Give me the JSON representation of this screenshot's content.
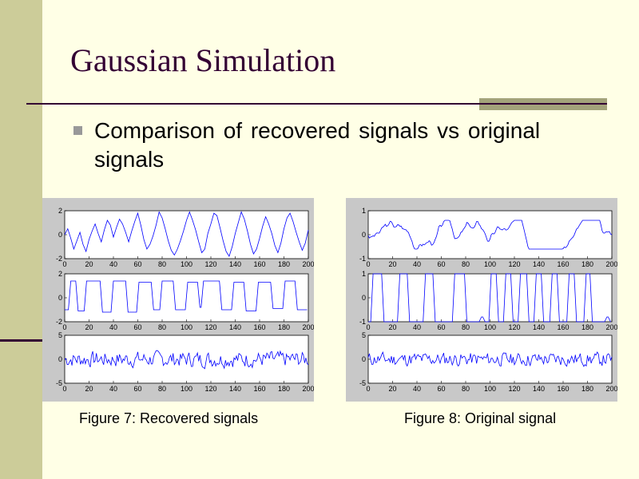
{
  "slide": {
    "title": "Gaussian Simulation",
    "bullet": "Comparison of recovered signals vs original signals",
    "caption_left": "Figure 7: Recovered signals",
    "caption_right": "Figure 8: Original signal"
  },
  "colors": {
    "background": "#ffffe6",
    "band": "#cccc99",
    "title": "#330033",
    "line": "#0000ff",
    "panel": "#c8c8c8"
  },
  "chart_data": [
    {
      "type": "line",
      "title": "Figure 7: Recovered signals",
      "panels": [
        {
          "xlim": [
            0,
            200
          ],
          "ylim": [
            -2,
            2
          ],
          "yticks": [
            "2",
            "0",
            "-2"
          ],
          "xticks": [
            "0",
            "20",
            "40",
            "60",
            "80",
            "100",
            "120",
            "140",
            "160",
            "180",
            "200"
          ],
          "series": [
            {
              "kind": "smooth",
              "amp": 1.2,
              "seed": 3,
              "values": [
                0,
                0.5,
                -0.3,
                -1.2,
                -0.5,
                0.2,
                -0.8,
                -1.4,
                -0.4,
                0.3,
                0.9,
                0.1,
                -0.6,
                0.4,
                1.2,
                0.8,
                -0.2,
                0.6,
                1.3,
                0.9,
                0.2,
                -0.6,
                0.3,
                1.1,
                1.8,
                0.8,
                -0.4,
                -1.2,
                -0.8,
                -0.1,
                0.8,
                1.9,
                1.4,
                0.5,
                -0.5,
                -1.3,
                -1.7,
                -1.2,
                -0.5,
                0.3,
                1.2,
                1.9,
                1.2,
                0.4,
                -0.6,
                -1.5,
                -1.2,
                0.1,
                0.9,
                1.8,
                1.6,
                0.6,
                -0.5,
                -1.4,
                -1.8,
                -1.0,
                0.1,
                1.0,
                1.9,
                1.3,
                0.3,
                -0.8,
                -1.6,
                -1.2,
                -0.3,
                0.7,
                1.5,
                0.9,
                0.1,
                -0.9,
                -1.5,
                -0.7,
                0.5,
                1.4,
                1.8,
                1.1,
                0.2,
                -0.6,
                -1.3,
                -0.7,
                0.4
              ]
            }
          ]
        },
        {
          "xlim": [
            0,
            200
          ],
          "ylim": [
            -2,
            2
          ],
          "yticks": [
            "2",
            "0",
            "-2"
          ],
          "xticks": [
            "0",
            "20",
            "40",
            "60",
            "80",
            "100",
            "120",
            "140",
            "160",
            "180",
            "200"
          ],
          "series": [
            {
              "kind": "square",
              "high": 1.4,
              "low": -1.1,
              "segments": [
                [
                  0,
                  4,
                  -1.0
                ],
                [
                  4,
                  10,
                  1.4
                ],
                [
                  10,
                  17,
                  -1.1
                ],
                [
                  17,
                  30,
                  1.4
                ],
                [
                  30,
                  39,
                  -1.2
                ],
                [
                  39,
                  51,
                  1.4
                ],
                [
                  51,
                  60,
                  -1.2
                ],
                [
                  60,
                  72,
                  1.3
                ],
                [
                  72,
                  79,
                  -1.0
                ],
                [
                  79,
                  90,
                  1.4
                ],
                [
                  90,
                  100,
                  -1.0
                ],
                [
                  100,
                  110,
                  1.3
                ],
                [
                  110,
                  113,
                  -0.8
                ],
                [
                  113,
                  128,
                  1.4
                ],
                [
                  128,
                  138,
                  -1.0
                ],
                [
                  138,
                  148,
                  1.3
                ],
                [
                  148,
                  158,
                  -1.1
                ],
                [
                  158,
                  170,
                  1.3
                ],
                [
                  170,
                  180,
                  -0.9
                ],
                [
                  180,
                  190,
                  1.4
                ],
                [
                  190,
                  200,
                  -1.0
                ]
              ]
            }
          ]
        },
        {
          "xlim": [
            0,
            200
          ],
          "ylim": [
            -5,
            5
          ],
          "yticks": [
            "5",
            "0",
            "-5"
          ],
          "xticks": [
            "0",
            "20",
            "40",
            "60",
            "80",
            "100",
            "120",
            "140",
            "160",
            "180",
            "200"
          ],
          "series": [
            {
              "kind": "noise",
              "amp": 1.5,
              "seed": 7
            }
          ]
        }
      ]
    },
    {
      "type": "line",
      "title": "Figure 8: Original signal",
      "panels": [
        {
          "xlim": [
            0,
            200
          ],
          "ylim": [
            -1,
            1
          ],
          "yticks": [
            "1",
            "0",
            "-1"
          ],
          "xticks": [
            "0",
            "20",
            "40",
            "60",
            "80",
            "100",
            "120",
            "140",
            "160",
            "180",
            "200"
          ],
          "series": [
            {
              "kind": "smooth",
              "amp": 0.6,
              "seed": 3
            }
          ]
        },
        {
          "xlim": [
            0,
            200
          ],
          "ylim": [
            -1,
            1
          ],
          "yticks": [
            "1",
            "0",
            "-1"
          ],
          "xticks": [
            "0",
            "20",
            "40",
            "60",
            "80",
            "100",
            "120",
            "140",
            "160",
            "180",
            "200"
          ],
          "series": [
            {
              "kind": "square",
              "high": 1,
              "low": -1,
              "segments": [
                [
                  0,
                  3,
                  -1
                ],
                [
                  3,
                  12,
                  1
                ],
                [
                  12,
                  25,
                  -1
                ],
                [
                  25,
                  33,
                  1
                ],
                [
                  33,
                  46,
                  -1
                ],
                [
                  46,
                  54,
                  1
                ],
                [
                  54,
                  70,
                  -1
                ],
                [
                  70,
                  80,
                  1
                ],
                [
                  80,
                  92,
                  -1
                ],
                [
                  92,
                  95,
                  -0.8
                ],
                [
                  95,
                  100,
                  -1
                ],
                [
                  100,
                  106,
                  1
                ],
                [
                  106,
                  112,
                  -1
                ],
                [
                  112,
                  118,
                  1
                ],
                [
                  118,
                  124,
                  -1
                ],
                [
                  124,
                  131,
                  1
                ],
                [
                  131,
                  137,
                  -1
                ],
                [
                  137,
                  143,
                  1
                ],
                [
                  143,
                  150,
                  -1
                ],
                [
                  150,
                  156,
                  1
                ],
                [
                  156,
                  164,
                  -1
                ],
                [
                  164,
                  170,
                  1
                ],
                [
                  170,
                  178,
                  -1
                ],
                [
                  178,
                  183,
                  1
                ],
                [
                  183,
                  195,
                  -1
                ],
                [
                  195,
                  198,
                  -0.8
                ],
                [
                  198,
                  200,
                  -1
                ]
              ]
            }
          ]
        },
        {
          "xlim": [
            0,
            200
          ],
          "ylim": [
            -5,
            5
          ],
          "yticks": [
            "5",
            "0",
            "-5"
          ],
          "xticks": [
            "0",
            "20",
            "40",
            "60",
            "80",
            "100",
            "120",
            "140",
            "160",
            "180",
            "200"
          ],
          "series": [
            {
              "kind": "noise",
              "amp": 1.3,
              "seed": 11
            }
          ]
        }
      ]
    }
  ]
}
